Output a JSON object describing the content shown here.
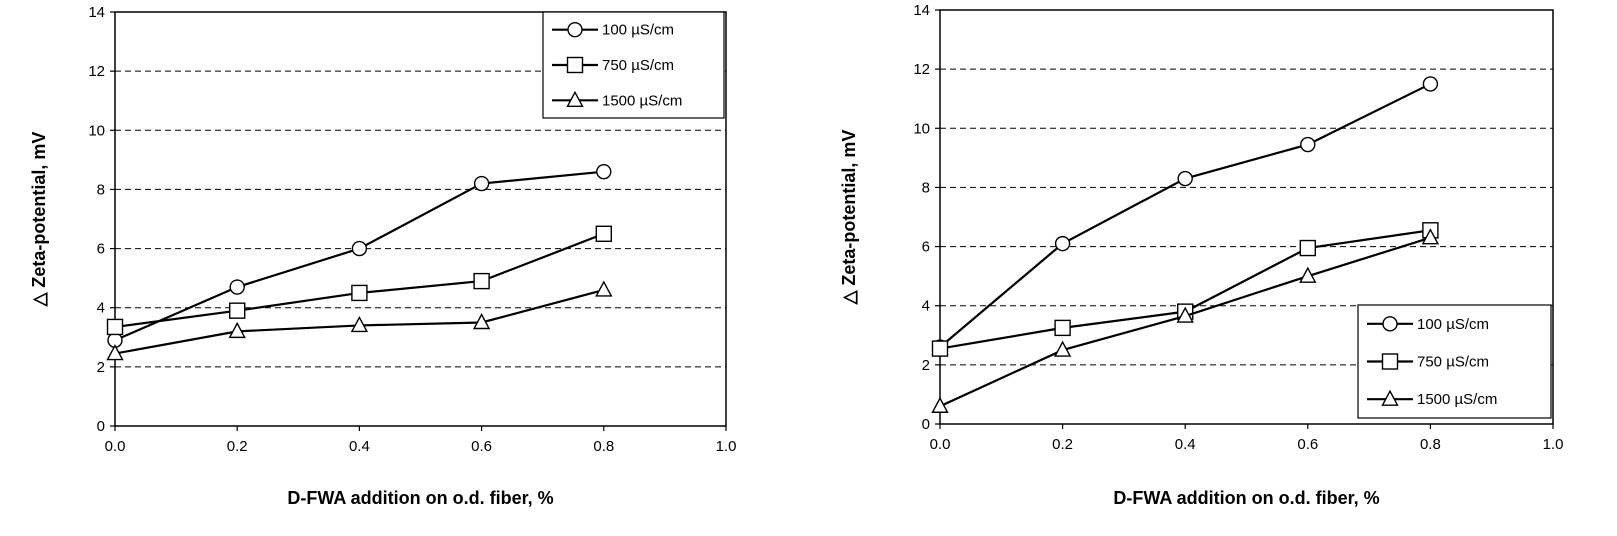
{
  "chart_data": [
    {
      "type": "line",
      "title": "",
      "xlabel": "D-FWA addition on o.d. fiber, %",
      "ylabel": "△ Zeta-potential, mV",
      "xlim": [
        0.0,
        1.0
      ],
      "ylim": [
        0,
        14
      ],
      "xticks": [
        "0.0",
        "0.2",
        "0.4",
        "0.6",
        "0.8",
        "1.0"
      ],
      "yticks": [
        "0",
        "2",
        "4",
        "6",
        "8",
        "10",
        "12",
        "14"
      ],
      "grid": "horizontal dashed",
      "legend_position": "top-right",
      "x": [
        0.0,
        0.2,
        0.4,
        0.6,
        0.8
      ],
      "series": [
        {
          "name": "100 µS/cm",
          "marker": "circle",
          "values": [
            2.9,
            4.7,
            6.0,
            8.2,
            8.6
          ]
        },
        {
          "name": "750 µS/cm",
          "marker": "square",
          "values": [
            3.35,
            3.9,
            4.5,
            4.9,
            6.5
          ]
        },
        {
          "name": "1500 µS/cm",
          "marker": "triangle",
          "values": [
            2.45,
            3.2,
            3.4,
            3.5,
            4.6
          ]
        }
      ]
    },
    {
      "type": "line",
      "title": "",
      "xlabel": "D-FWA addition on o.d. fiber, %",
      "ylabel": "△ Zeta-potential, mV",
      "xlim": [
        0.0,
        1.0
      ],
      "ylim": [
        0,
        14
      ],
      "xticks": [
        "0.0",
        "0.2",
        "0.4",
        "0.6",
        "0.8",
        "1.0"
      ],
      "yticks": [
        "0",
        "2",
        "4",
        "6",
        "8",
        "10",
        "12",
        "14"
      ],
      "grid": "horizontal dashed",
      "legend_position": "bottom-right",
      "x": [
        0.0,
        0.2,
        0.4,
        0.6,
        0.8
      ],
      "series": [
        {
          "name": "100 µS/cm",
          "marker": "circle",
          "values": [
            2.6,
            6.1,
            8.3,
            9.45,
            11.5
          ]
        },
        {
          "name": "750 µS/cm",
          "marker": "square",
          "values": [
            2.55,
            3.25,
            3.8,
            5.95,
            6.55
          ]
        },
        {
          "name": "1500 µS/cm",
          "marker": "triangle",
          "values": [
            0.6,
            2.5,
            3.65,
            5.0,
            6.3
          ]
        }
      ]
    }
  ]
}
